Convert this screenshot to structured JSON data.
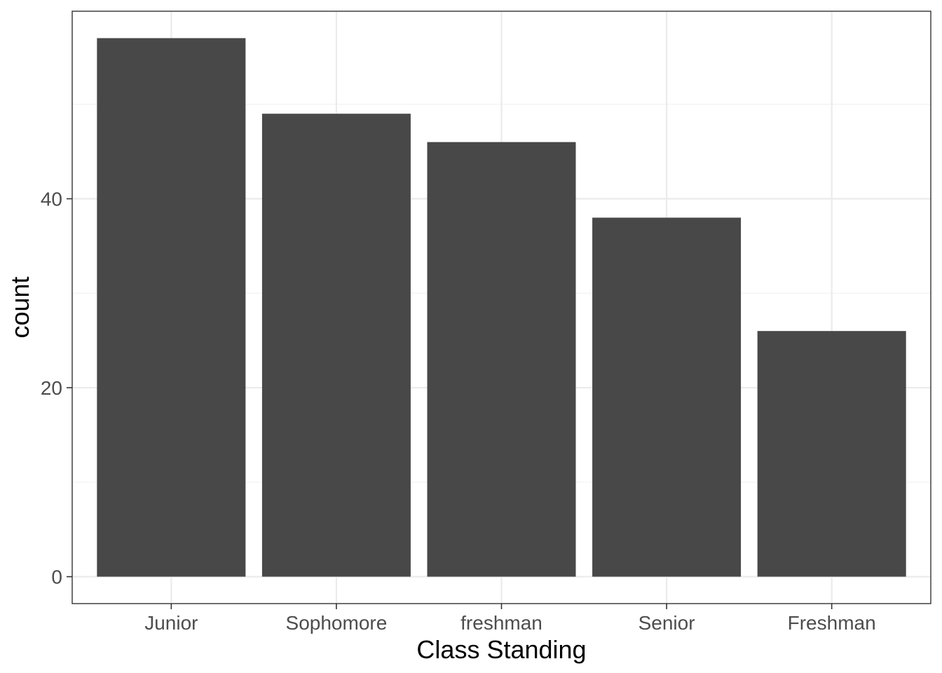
{
  "chart_data": {
    "type": "bar",
    "title": "",
    "xlabel": "Class Standing",
    "ylabel": "count",
    "categories": [
      "Junior",
      "Sophomore",
      "freshman",
      "Senior",
      "Freshman"
    ],
    "values": [
      57,
      49,
      46,
      38,
      26
    ],
    "ylim": [
      -2.85,
      59.85
    ],
    "yticks": [
      0,
      20,
      40
    ],
    "y_minor_gridlines": [
      10,
      30,
      50
    ],
    "grid": true,
    "legend": "none",
    "theme": "bw"
  },
  "colors": {
    "bar_fill": "#484848",
    "panel_background": "#ffffff",
    "panel_border": "#333333",
    "major_grid": "#ebebeb",
    "minor_grid": "#f2f2f2",
    "tick_label": "#4d4d4d",
    "axis_title": "#000000"
  }
}
